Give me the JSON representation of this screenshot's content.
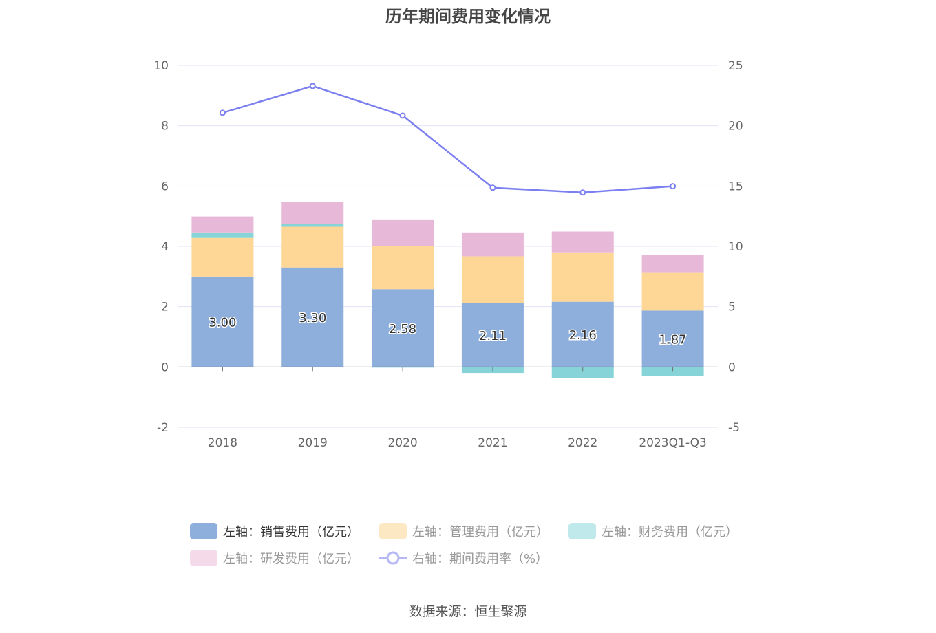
{
  "chart_data": {
    "type": "bar",
    "title": "历年期间费用变化情况",
    "categories": [
      "2018",
      "2019",
      "2020",
      "2021",
      "2022",
      "2023Q1-Q3"
    ],
    "left_axis": {
      "ylim": [
        -2,
        10
      ],
      "ticks": [
        -2,
        0,
        2,
        4,
        6,
        8,
        10
      ]
    },
    "right_axis": {
      "ylim": [
        -5,
        25
      ],
      "ticks": [
        -5,
        0,
        5,
        10,
        15,
        20,
        25
      ]
    },
    "grid": true,
    "legend_position": "bottom",
    "series": [
      {
        "name": "左轴：销售费用（亿元）",
        "axis": "left",
        "kind": "bar",
        "color": "#8eaedb",
        "values": [
          3.0,
          3.3,
          2.58,
          2.11,
          2.16,
          1.87
        ],
        "labels": [
          "3.00",
          "3.30",
          "2.58",
          "2.11",
          "2.16",
          "1.87"
        ]
      },
      {
        "name": "左轴：管理费用（亿元）",
        "axis": "left",
        "kind": "bar",
        "color": "#fed797",
        "values": [
          1.28,
          1.35,
          1.43,
          1.56,
          1.64,
          1.25
        ]
      },
      {
        "name": "左轴：财务费用（亿元）",
        "axis": "left",
        "kind": "bar",
        "color": "#86d4d7",
        "values": [
          0.18,
          0.09,
          -0.02,
          -0.2,
          -0.36,
          -0.3
        ]
      },
      {
        "name": "左轴：研发费用（亿元）",
        "axis": "left",
        "kind": "bar",
        "color": "#e8b8d8",
        "values": [
          0.53,
          0.73,
          0.86,
          0.79,
          0.69,
          0.59
        ]
      },
      {
        "name": "右轴：期间费用率（%）",
        "axis": "right",
        "kind": "line",
        "color": "#7b7ff0",
        "values": [
          21.07,
          23.29,
          20.84,
          14.86,
          14.46,
          14.98
        ]
      }
    ],
    "legend_swatch_colors": [
      "#8eaedb",
      "#fde8c4",
      "#bfe9ea",
      "#f5dbe9",
      "#b6b8f5"
    ]
  },
  "source": "数据来源：恒生聚源"
}
